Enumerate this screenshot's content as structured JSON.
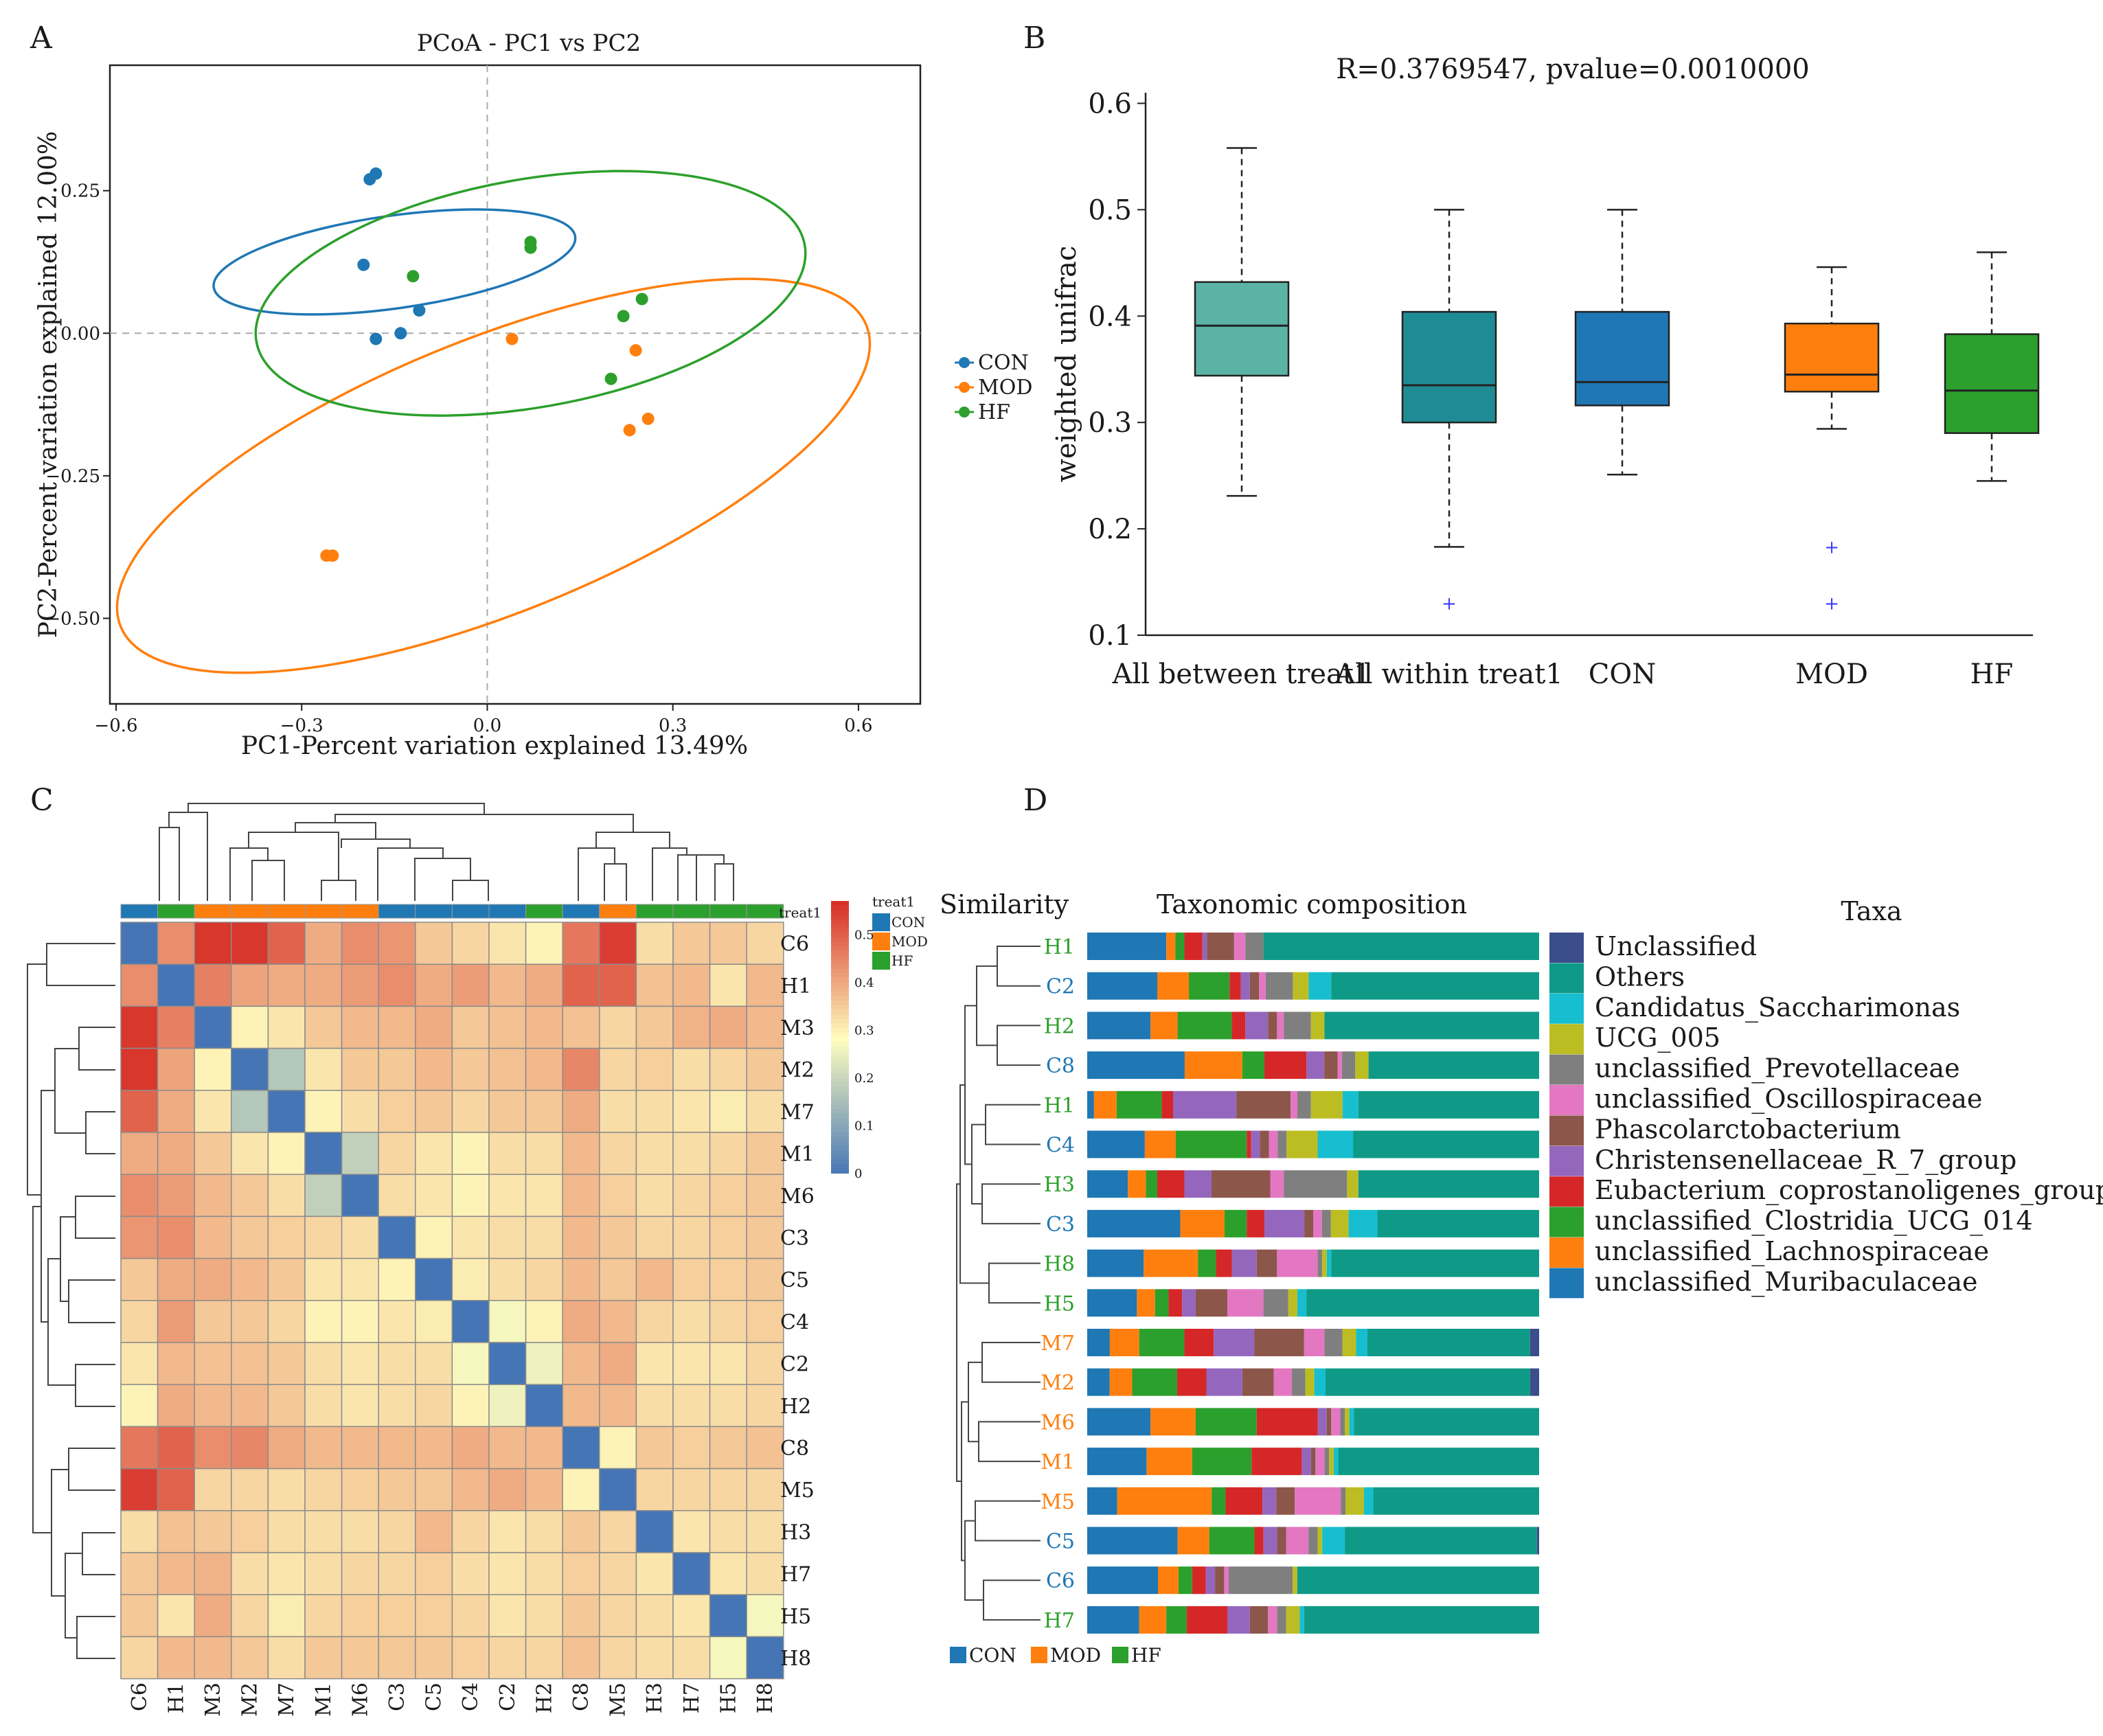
{
  "panel_labels": [
    "A",
    "B",
    "C",
    "D"
  ],
  "colors": {
    "CON": "#1f77b4",
    "MOD": "#ff7f0e",
    "HF": "#2ca02c",
    "box_between": "#5bb3a6",
    "box_within": "#1f8c94",
    "heat_low": "#4575b4",
    "heat_mid": "#fffebf",
    "heat_high": "#d73027"
  },
  "chart_data": [
    {
      "id": "A",
      "type": "scatter",
      "title": "PCoA - PC1 vs PC2",
      "xlabel": "PC1-Percent variation explained 13.49%",
      "ylabel": "PC2-Percent variation explained 12.00%",
      "xlim": [
        -0.61,
        0.7
      ],
      "ylim": [
        -0.65,
        0.47
      ],
      "xticks": [
        -0.6,
        -0.3,
        0.0,
        0.3,
        0.6
      ],
      "xtick_labels": [
        "−0.6",
        "−0.3",
        "0.0",
        "0.3",
        "0.6"
      ],
      "yticks": [
        0.25,
        0.0,
        -0.25,
        -0.5
      ],
      "ytick_labels": [
        "0.25",
        "0.00",
        "−0.25",
        "−0.50"
      ],
      "legend": [
        "CON",
        "MOD",
        "HF"
      ],
      "series": [
        {
          "name": "CON",
          "points": [
            [
              -0.19,
              0.27
            ],
            [
              -0.18,
              0.28
            ],
            [
              -0.2,
              0.12
            ],
            [
              -0.14,
              0.0
            ],
            [
              -0.11,
              0.04
            ],
            [
              -0.18,
              -0.01
            ]
          ]
        },
        {
          "name": "MOD",
          "points": [
            [
              0.04,
              -0.01
            ],
            [
              0.24,
              -0.03
            ],
            [
              0.26,
              -0.15
            ],
            [
              0.23,
              -0.17
            ],
            [
              -0.26,
              -0.39
            ],
            [
              -0.25,
              -0.39
            ]
          ]
        },
        {
          "name": "HF",
          "points": [
            [
              -0.12,
              0.1
            ],
            [
              0.07,
              0.15
            ],
            [
              0.07,
              0.16
            ],
            [
              0.22,
              0.03
            ],
            [
              0.25,
              0.06
            ],
            [
              0.2,
              -0.08
            ]
          ]
        }
      ],
      "ellipses": [
        {
          "name": "CON",
          "cx": -0.15,
          "cy": 0.125,
          "rx": 0.075,
          "ry": 0.32,
          "angle_deg": 82
        },
        {
          "name": "MOD",
          "cx": 0.01,
          "cy": -0.25,
          "rx": 0.65,
          "ry": 0.24,
          "angle_deg": -22
        },
        {
          "name": "HF",
          "cx": 0.07,
          "cy": 0.07,
          "rx": 0.45,
          "ry": 0.2,
          "angle_deg": -10
        }
      ]
    },
    {
      "id": "B",
      "type": "box",
      "title": "R=0.3769547, pvalue=0.0010000",
      "ylabel": "weighted unifrac",
      "ylim": [
        0.1,
        0.61
      ],
      "yticks": [
        0.1,
        0.2,
        0.3,
        0.4,
        0.5,
        0.6
      ],
      "ytick_labels": [
        "0.1",
        "0.2",
        "0.3",
        "0.4",
        "0.5",
        "0.6"
      ],
      "categories": [
        "All between treat1",
        "All within treat1",
        "CON",
        "MOD",
        "HF"
      ],
      "boxes": [
        {
          "name": "All between treat1",
          "whisker_low": 0.231,
          "q1": 0.344,
          "median": 0.391,
          "q3": 0.432,
          "whisker_high": 0.558,
          "outliers": []
        },
        {
          "name": "All within treat1",
          "whisker_low": 0.183,
          "q1": 0.3,
          "median": 0.335,
          "q3": 0.404,
          "whisker_high": 0.5,
          "outliers": [
            0.13
          ]
        },
        {
          "name": "CON",
          "whisker_low": 0.251,
          "q1": 0.316,
          "median": 0.338,
          "q3": 0.404,
          "whisker_high": 0.5,
          "outliers": []
        },
        {
          "name": "MOD",
          "whisker_low": 0.294,
          "q1": 0.329,
          "median": 0.345,
          "q3": 0.393,
          "whisker_high": 0.446,
          "outliers": [
            0.183,
            0.13
          ]
        },
        {
          "name": "HF",
          "whisker_low": 0.245,
          "q1": 0.29,
          "median": 0.33,
          "q3": 0.383,
          "whisker_high": 0.46,
          "outliers": []
        }
      ]
    },
    {
      "id": "C",
      "type": "heatmap",
      "labels": [
        "C6",
        "H1",
        "M3",
        "M2",
        "M7",
        "M1",
        "M6",
        "C3",
        "C5",
        "C4",
        "C2",
        "H2",
        "C8",
        "M5",
        "H3",
        "H7",
        "H5",
        "H8"
      ],
      "groups": [
        "CON",
        "HF",
        "MOD",
        "MOD",
        "MOD",
        "MOD",
        "MOD",
        "CON",
        "CON",
        "CON",
        "CON",
        "HF",
        "CON",
        "MOD",
        "HF",
        "HF",
        "HF",
        "HF"
      ],
      "annotation_title": "treat1",
      "annotation_legend": [
        "CON",
        "MOD",
        "HF"
      ],
      "colorbar_ticks": [
        0,
        0.1,
        0.2,
        0.3,
        0.4,
        0.5
      ],
      "colorbar_tick_labels": [
        "0",
        "0.1",
        "0.2",
        "0.3",
        "0.4",
        "0.5"
      ],
      "colorbar_max": 0.57,
      "values": [
        [
          0.0,
          0.44,
          0.56,
          0.56,
          0.5,
          0.4,
          0.44,
          0.43,
          0.36,
          0.34,
          0.32,
          0.3,
          0.47,
          0.55,
          0.33,
          0.36,
          0.36,
          0.34
        ],
        [
          0.44,
          0.0,
          0.46,
          0.41,
          0.4,
          0.4,
          0.42,
          0.44,
          0.4,
          0.42,
          0.38,
          0.4,
          0.5,
          0.5,
          0.37,
          0.38,
          0.32,
          0.38
        ],
        [
          0.56,
          0.46,
          0.0,
          0.3,
          0.32,
          0.36,
          0.38,
          0.38,
          0.4,
          0.36,
          0.37,
          0.38,
          0.37,
          0.34,
          0.36,
          0.39,
          0.4,
          0.38
        ],
        [
          0.56,
          0.41,
          0.3,
          0.0,
          0.17,
          0.32,
          0.36,
          0.36,
          0.38,
          0.36,
          0.37,
          0.38,
          0.45,
          0.34,
          0.35,
          0.33,
          0.34,
          0.36
        ],
        [
          0.5,
          0.4,
          0.32,
          0.17,
          0.0,
          0.3,
          0.33,
          0.35,
          0.36,
          0.34,
          0.36,
          0.36,
          0.4,
          0.33,
          0.33,
          0.32,
          0.31,
          0.33
        ],
        [
          0.4,
          0.4,
          0.36,
          0.32,
          0.3,
          0.0,
          0.19,
          0.34,
          0.32,
          0.3,
          0.33,
          0.33,
          0.38,
          0.34,
          0.33,
          0.33,
          0.34,
          0.36
        ],
        [
          0.44,
          0.42,
          0.38,
          0.36,
          0.33,
          0.19,
          0.0,
          0.33,
          0.32,
          0.3,
          0.32,
          0.32,
          0.38,
          0.35,
          0.33,
          0.34,
          0.35,
          0.36
        ],
        [
          0.43,
          0.44,
          0.38,
          0.36,
          0.35,
          0.34,
          0.33,
          0.0,
          0.3,
          0.32,
          0.33,
          0.33,
          0.38,
          0.36,
          0.34,
          0.34,
          0.35,
          0.36
        ],
        [
          0.36,
          0.4,
          0.4,
          0.38,
          0.36,
          0.32,
          0.32,
          0.3,
          0.0,
          0.31,
          0.33,
          0.34,
          0.38,
          0.36,
          0.38,
          0.35,
          0.35,
          0.36
        ],
        [
          0.34,
          0.42,
          0.36,
          0.36,
          0.34,
          0.3,
          0.3,
          0.32,
          0.31,
          0.0,
          0.27,
          0.3,
          0.4,
          0.38,
          0.34,
          0.33,
          0.34,
          0.35
        ],
        [
          0.32,
          0.38,
          0.37,
          0.37,
          0.36,
          0.33,
          0.32,
          0.33,
          0.33,
          0.27,
          0.0,
          0.26,
          0.38,
          0.4,
          0.32,
          0.32,
          0.32,
          0.34
        ],
        [
          0.3,
          0.4,
          0.38,
          0.38,
          0.36,
          0.33,
          0.32,
          0.33,
          0.34,
          0.3,
          0.26,
          0.0,
          0.38,
          0.38,
          0.33,
          0.33,
          0.33,
          0.34
        ],
        [
          0.47,
          0.5,
          0.44,
          0.45,
          0.4,
          0.38,
          0.38,
          0.38,
          0.38,
          0.4,
          0.38,
          0.38,
          0.0,
          0.3,
          0.36,
          0.35,
          0.36,
          0.37
        ],
        [
          0.55,
          0.5,
          0.34,
          0.34,
          0.33,
          0.34,
          0.35,
          0.36,
          0.36,
          0.38,
          0.4,
          0.38,
          0.3,
          0.0,
          0.34,
          0.34,
          0.34,
          0.34
        ],
        [
          0.33,
          0.37,
          0.36,
          0.35,
          0.33,
          0.33,
          0.33,
          0.34,
          0.38,
          0.34,
          0.32,
          0.33,
          0.36,
          0.34,
          0.0,
          0.32,
          0.33,
          0.33
        ],
        [
          0.36,
          0.38,
          0.39,
          0.33,
          0.32,
          0.33,
          0.34,
          0.34,
          0.35,
          0.33,
          0.32,
          0.33,
          0.35,
          0.34,
          0.32,
          0.0,
          0.32,
          0.33
        ],
        [
          0.36,
          0.32,
          0.4,
          0.34,
          0.31,
          0.34,
          0.35,
          0.35,
          0.35,
          0.34,
          0.32,
          0.33,
          0.36,
          0.34,
          0.33,
          0.32,
          0.0,
          0.27
        ],
        [
          0.34,
          0.38,
          0.38,
          0.36,
          0.33,
          0.36,
          0.36,
          0.36,
          0.36,
          0.35,
          0.34,
          0.34,
          0.37,
          0.34,
          0.33,
          0.33,
          0.27,
          0.0
        ]
      ]
    },
    {
      "id": "D",
      "type": "stacked_bar",
      "title": "Taxonomic composition",
      "similarity_label": "Similarity",
      "taxa_title": "Taxa",
      "samples": [
        "H1",
        "C2",
        "H2",
        "C8",
        "H1",
        "C4",
        "H3",
        "C3",
        "H8",
        "H5",
        "M7",
        "M2",
        "M6",
        "M1",
        "M5",
        "C5",
        "C6",
        "H7"
      ],
      "sample_groups": [
        "HF",
        "CON",
        "HF",
        "CON",
        "HF",
        "CON",
        "HF",
        "CON",
        "HF",
        "HF",
        "MOD",
        "MOD",
        "MOD",
        "MOD",
        "MOD",
        "CON",
        "CON",
        "HF"
      ],
      "taxa": [
        "unclassified_Muribaculaceae",
        "unclassified_Lachnospiraceae",
        "unclassified_Clostridia_UCG_014",
        "Eubacterium_coprostanoligenes_group",
        "Christensenellaceae_R_7_group",
        "Phascolarctobacterium",
        "unclassified_Oscillospiraceae",
        "unclassified_Prevotellaceae",
        "UCG_005",
        "Candidatus_Saccharimonas",
        "Others",
        "Unclassified"
      ],
      "taxa_legend_order": [
        "Unclassified",
        "Others",
        "Candidatus_Saccharimonas",
        "UCG_005",
        "unclassified_Prevotellaceae",
        "unclassified_Oscillospiraceae",
        "Phascolarctobacterium",
        "Christensenellaceae_R_7_group",
        "Eubacterium_coprostanoligenes_group",
        "unclassified_Clostridia_UCG_014",
        "unclassified_Lachnospiraceae",
        "unclassified_Muribaculaceae"
      ],
      "taxa_colors": [
        "#1f77b4",
        "#ff7f0e",
        "#2ca02c",
        "#d62728",
        "#9467bd",
        "#8c564b",
        "#e377c2",
        "#7f7f7f",
        "#bcbd22",
        "#17becf",
        "#0f9a88",
        "#3b4d8a"
      ],
      "values": [
        [
          0.175,
          0.02,
          0.02,
          0.04,
          0.01,
          0.06,
          0.025,
          0.04,
          0.0,
          0.0,
          0.61,
          0.0
        ],
        [
          0.155,
          0.07,
          0.09,
          0.025,
          0.02,
          0.02,
          0.015,
          0.06,
          0.035,
          0.05,
          0.46,
          0.0
        ],
        [
          0.14,
          0.06,
          0.12,
          0.03,
          0.05,
          0.02,
          0.015,
          0.06,
          0.03,
          0.0,
          0.475,
          0.0
        ],
        [
          0.22,
          0.13,
          0.05,
          0.095,
          0.04,
          0.03,
          0.01,
          0.03,
          0.03,
          0.0,
          0.385,
          0.0
        ],
        [
          0.015,
          0.05,
          0.1,
          0.025,
          0.14,
          0.12,
          0.015,
          0.03,
          0.07,
          0.035,
          0.4,
          0.0
        ],
        [
          0.13,
          0.07,
          0.16,
          0.01,
          0.02,
          0.02,
          0.02,
          0.02,
          0.07,
          0.08,
          0.42,
          0.0
        ],
        [
          0.09,
          0.04,
          0.025,
          0.06,
          0.06,
          0.13,
          0.03,
          0.14,
          0.025,
          0.0,
          0.4,
          0.0
        ],
        [
          0.21,
          0.1,
          0.05,
          0.04,
          0.09,
          0.02,
          0.02,
          0.02,
          0.04,
          0.065,
          0.365,
          0.0
        ],
        [
          0.125,
          0.12,
          0.04,
          0.035,
          0.055,
          0.045,
          0.09,
          0.01,
          0.01,
          0.01,
          0.46,
          0.0
        ],
        [
          0.11,
          0.04,
          0.03,
          0.03,
          0.03,
          0.07,
          0.08,
          0.055,
          0.02,
          0.02,
          0.515,
          0.0
        ],
        [
          0.05,
          0.065,
          0.1,
          0.065,
          0.09,
          0.11,
          0.045,
          0.04,
          0.03,
          0.025,
          0.36,
          0.02
        ],
        [
          0.05,
          0.05,
          0.1,
          0.065,
          0.08,
          0.07,
          0.04,
          0.03,
          0.02,
          0.025,
          0.455,
          0.02
        ],
        [
          0.14,
          0.1,
          0.135,
          0.135,
          0.02,
          0.01,
          0.02,
          0.01,
          0.01,
          0.01,
          0.41,
          0.0
        ],
        [
          0.13,
          0.1,
          0.13,
          0.11,
          0.02,
          0.01,
          0.02,
          0.01,
          0.01,
          0.01,
          0.44,
          0.0
        ],
        [
          0.065,
          0.205,
          0.03,
          0.08,
          0.03,
          0.04,
          0.1,
          0.01,
          0.04,
          0.02,
          0.36,
          0.0
        ],
        [
          0.2,
          0.07,
          0.1,
          0.02,
          0.03,
          0.02,
          0.05,
          0.02,
          0.01,
          0.05,
          0.425,
          0.005
        ],
        [
          0.155,
          0.045,
          0.03,
          0.03,
          0.02,
          0.02,
          0.01,
          0.14,
          0.01,
          0.0,
          0.53,
          0.0
        ],
        [
          0.115,
          0.06,
          0.045,
          0.09,
          0.05,
          0.04,
          0.02,
          0.02,
          0.03,
          0.01,
          0.52,
          0.0
        ]
      ],
      "bottom_legend": [
        "CON",
        "MOD",
        "HF"
      ]
    }
  ]
}
